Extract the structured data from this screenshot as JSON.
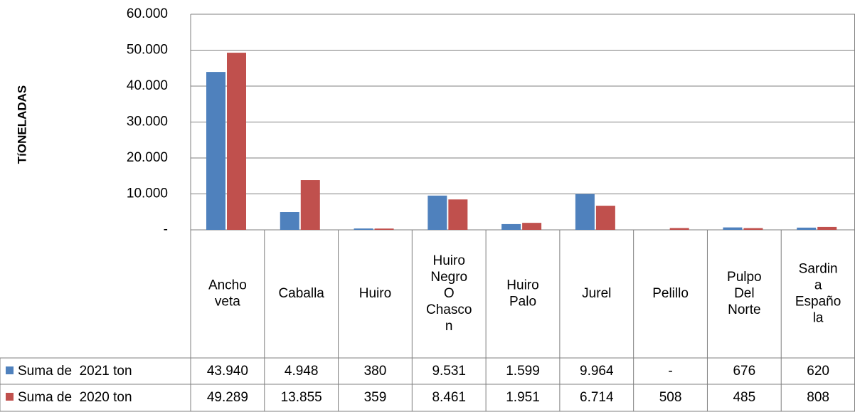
{
  "chart_data": {
    "type": "bar",
    "y_label": "TíONELADAS",
    "categories": [
      "Ancho\nveta",
      "Caballa",
      "Huiro",
      "Huiro\nNegro\nO\nChasco\nn",
      "Huiro\nPalo",
      "Jurel",
      "Pelillo",
      "Pulpo\nDel\nNorte",
      "Sardin\na\nEspaño\nla"
    ],
    "series": [
      {
        "name": "Suma de  2021 ton",
        "color": "#4f81bd",
        "values": [
          43940,
          4948,
          380,
          9531,
          1599,
          9964,
          null,
          676,
          620
        ],
        "value_labels": [
          "43.940",
          "4.948",
          "380",
          "9.531",
          "1.599",
          "9.964",
          "-",
          "676",
          "620"
        ]
      },
      {
        "name": "Suma de  2020 ton",
        "color": "#c0504d",
        "values": [
          49289,
          13855,
          359,
          8461,
          1951,
          6714,
          508,
          485,
          808
        ],
        "value_labels": [
          "49.289",
          "13.855",
          "359",
          "8.461",
          "1.951",
          "6.714",
          "508",
          "485",
          "808"
        ]
      }
    ],
    "ylim": [
      0,
      60000
    ],
    "yticks": [
      {
        "value": 0,
        "label": "-"
      },
      {
        "value": 10000,
        "label": "10.000"
      },
      {
        "value": 20000,
        "label": "20.000"
      },
      {
        "value": 30000,
        "label": "30.000"
      },
      {
        "value": 40000,
        "label": "40.000"
      },
      {
        "value": 50000,
        "label": "50.000"
      },
      {
        "value": 60000,
        "label": "60.000"
      }
    ],
    "grid": true
  }
}
